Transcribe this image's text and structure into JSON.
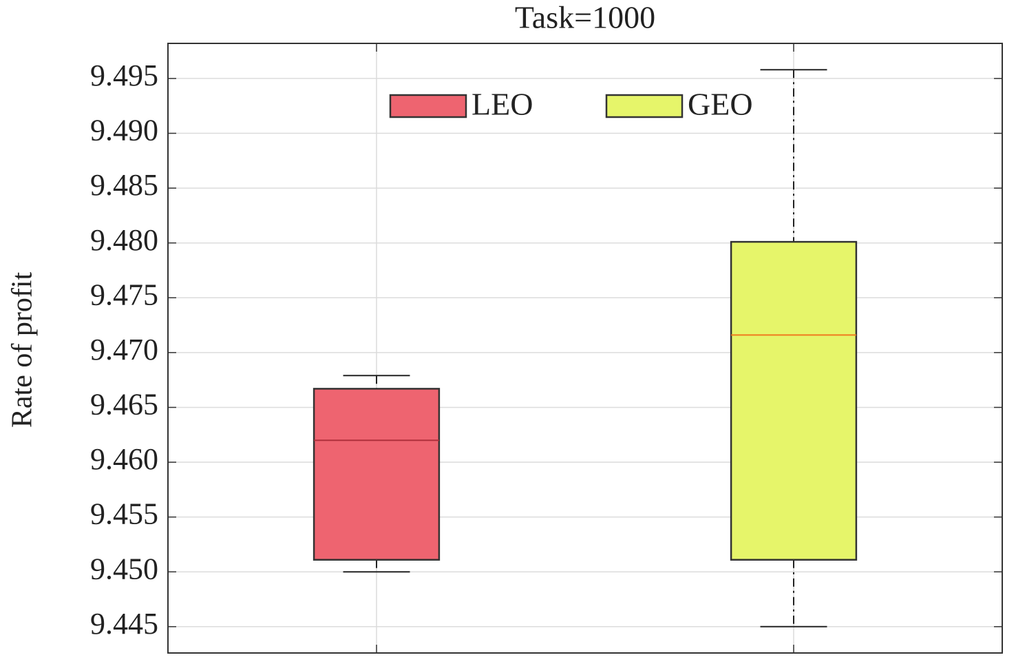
{
  "chart_data": {
    "type": "box",
    "title": "Task=1000",
    "y_label": "Rate of profit",
    "categories": [
      null,
      null
    ],
    "series": [
      {
        "name": "LEO",
        "color": "#ee6470",
        "median_color": "#b0303c",
        "whislo": 9.45,
        "q1": 9.4511,
        "med": 9.462,
        "q3": 9.4667,
        "whishi": 9.4679
      },
      {
        "name": "GEO",
        "color": "#e6f56a",
        "median_color": "#f07a1e",
        "whislo": 9.445,
        "q1": 9.4511,
        "med": 9.4716,
        "q3": 9.4801,
        "whishi": 9.4958
      }
    ],
    "ylim": [
      9.4426,
      9.4982
    ],
    "yticks": [
      9.445,
      {
        "value": 9.45,
        "label": "9.450"
      },
      9.455,
      {
        "value": 9.46,
        "label": "9.460"
      },
      9.465,
      {
        "value": 9.47,
        "label": "9.470"
      },
      9.475,
      {
        "value": 9.48,
        "label": "9.480"
      },
      9.485,
      {
        "value": 9.49,
        "label": "9.490"
      },
      9.495
    ],
    "grid": true,
    "legend": "top"
  }
}
